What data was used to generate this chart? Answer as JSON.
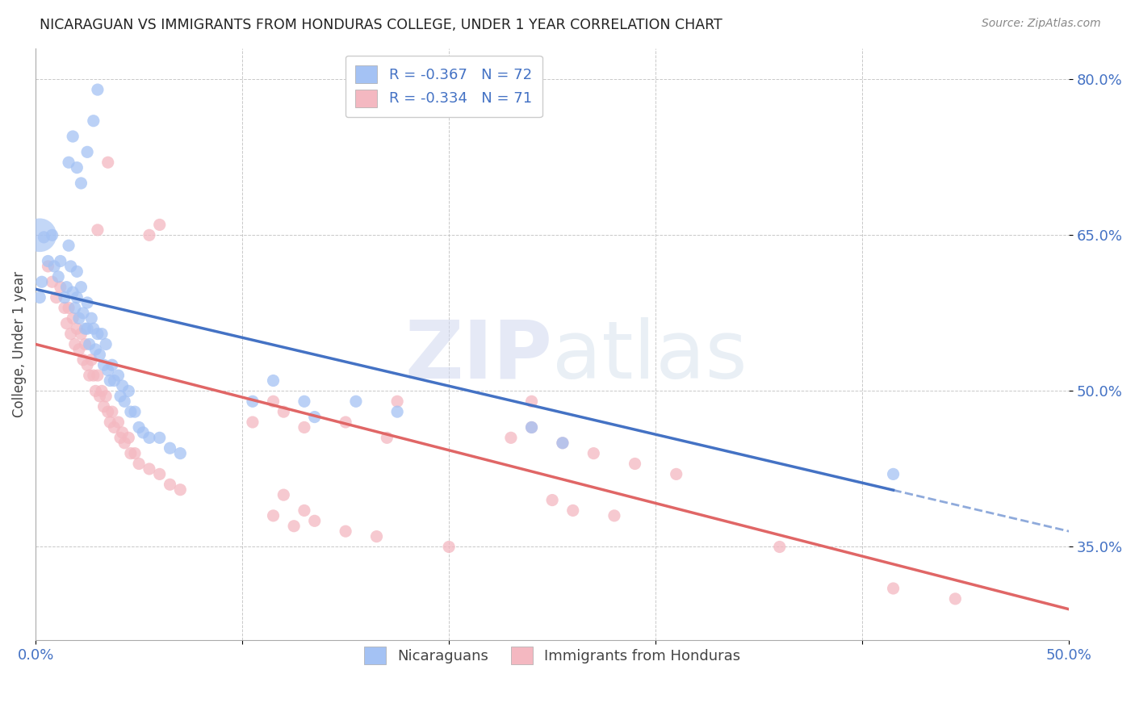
{
  "title": "NICARAGUAN VS IMMIGRANTS FROM HONDURAS COLLEGE, UNDER 1 YEAR CORRELATION CHART",
  "source": "Source: ZipAtlas.com",
  "ylabel": "College, Under 1 year",
  "legend_label1": "Nicaraguans",
  "legend_label2": "Immigrants from Honduras",
  "r1": -0.367,
  "n1": 72,
  "r2": -0.334,
  "n2": 71,
  "color_blue": "#a4c2f4",
  "color_pink": "#f4b8c1",
  "color_line_blue": "#4472c4",
  "color_line_pink": "#e06666",
  "color_legend_text": "#4472c4",
  "watermark_zip": "ZIP",
  "watermark_atlas": "atlas",
  "xmin": 0.0,
  "xmax": 0.5,
  "ymin": 0.26,
  "ymax": 0.83,
  "yticks": [
    0.35,
    0.5,
    0.65,
    0.8
  ],
  "ytick_labels": [
    "35.0%",
    "50.0%",
    "65.0%",
    "80.0%"
  ],
  "blue_line_x0": 0.0,
  "blue_line_y0": 0.598,
  "blue_line_x1": 0.5,
  "blue_line_y1": 0.365,
  "blue_line_solid_end": 0.415,
  "pink_line_x0": 0.0,
  "pink_line_y0": 0.545,
  "pink_line_x1": 0.5,
  "pink_line_y1": 0.29,
  "blue_scatter": [
    [
      0.004,
      0.648
    ],
    [
      0.006,
      0.625
    ],
    [
      0.008,
      0.65
    ],
    [
      0.009,
      0.62
    ],
    [
      0.011,
      0.61
    ],
    [
      0.012,
      0.625
    ],
    [
      0.014,
      0.59
    ],
    [
      0.015,
      0.6
    ],
    [
      0.016,
      0.64
    ],
    [
      0.017,
      0.62
    ],
    [
      0.018,
      0.595
    ],
    [
      0.019,
      0.58
    ],
    [
      0.02,
      0.615
    ],
    [
      0.02,
      0.59
    ],
    [
      0.021,
      0.57
    ],
    [
      0.022,
      0.6
    ],
    [
      0.023,
      0.575
    ],
    [
      0.024,
      0.56
    ],
    [
      0.025,
      0.585
    ],
    [
      0.025,
      0.56
    ],
    [
      0.026,
      0.545
    ],
    [
      0.027,
      0.57
    ],
    [
      0.028,
      0.56
    ],
    [
      0.029,
      0.54
    ],
    [
      0.03,
      0.555
    ],
    [
      0.031,
      0.535
    ],
    [
      0.032,
      0.555
    ],
    [
      0.033,
      0.525
    ],
    [
      0.034,
      0.545
    ],
    [
      0.035,
      0.52
    ],
    [
      0.036,
      0.51
    ],
    [
      0.037,
      0.525
    ],
    [
      0.038,
      0.51
    ],
    [
      0.04,
      0.515
    ],
    [
      0.041,
      0.495
    ],
    [
      0.042,
      0.505
    ],
    [
      0.043,
      0.49
    ],
    [
      0.045,
      0.5
    ],
    [
      0.046,
      0.48
    ],
    [
      0.048,
      0.48
    ],
    [
      0.05,
      0.465
    ],
    [
      0.052,
      0.46
    ],
    [
      0.055,
      0.455
    ],
    [
      0.06,
      0.455
    ],
    [
      0.065,
      0.445
    ],
    [
      0.07,
      0.44
    ],
    [
      0.016,
      0.72
    ],
    [
      0.018,
      0.745
    ],
    [
      0.02,
      0.715
    ],
    [
      0.022,
      0.7
    ],
    [
      0.025,
      0.73
    ],
    [
      0.028,
      0.76
    ],
    [
      0.03,
      0.79
    ],
    [
      0.105,
      0.49
    ],
    [
      0.115,
      0.51
    ],
    [
      0.13,
      0.49
    ],
    [
      0.135,
      0.475
    ],
    [
      0.155,
      0.49
    ],
    [
      0.175,
      0.48
    ],
    [
      0.24,
      0.465
    ],
    [
      0.255,
      0.45
    ],
    [
      0.415,
      0.42
    ],
    [
      0.002,
      0.59
    ],
    [
      0.003,
      0.605
    ]
  ],
  "blue_large_bubble": [
    0.002,
    0.65
  ],
  "pink_scatter": [
    [
      0.006,
      0.62
    ],
    [
      0.008,
      0.605
    ],
    [
      0.01,
      0.59
    ],
    [
      0.012,
      0.6
    ],
    [
      0.014,
      0.58
    ],
    [
      0.015,
      0.565
    ],
    [
      0.016,
      0.58
    ],
    [
      0.017,
      0.555
    ],
    [
      0.018,
      0.57
    ],
    [
      0.019,
      0.545
    ],
    [
      0.02,
      0.56
    ],
    [
      0.021,
      0.54
    ],
    [
      0.022,
      0.555
    ],
    [
      0.023,
      0.53
    ],
    [
      0.024,
      0.545
    ],
    [
      0.025,
      0.525
    ],
    [
      0.026,
      0.515
    ],
    [
      0.027,
      0.53
    ],
    [
      0.028,
      0.515
    ],
    [
      0.029,
      0.5
    ],
    [
      0.03,
      0.515
    ],
    [
      0.031,
      0.495
    ],
    [
      0.032,
      0.5
    ],
    [
      0.033,
      0.485
    ],
    [
      0.034,
      0.495
    ],
    [
      0.035,
      0.48
    ],
    [
      0.036,
      0.47
    ],
    [
      0.037,
      0.48
    ],
    [
      0.038,
      0.465
    ],
    [
      0.04,
      0.47
    ],
    [
      0.041,
      0.455
    ],
    [
      0.042,
      0.46
    ],
    [
      0.043,
      0.45
    ],
    [
      0.045,
      0.455
    ],
    [
      0.046,
      0.44
    ],
    [
      0.048,
      0.44
    ],
    [
      0.05,
      0.43
    ],
    [
      0.055,
      0.425
    ],
    [
      0.06,
      0.42
    ],
    [
      0.065,
      0.41
    ],
    [
      0.07,
      0.405
    ],
    [
      0.055,
      0.65
    ],
    [
      0.06,
      0.66
    ],
    [
      0.03,
      0.655
    ],
    [
      0.105,
      0.47
    ],
    [
      0.115,
      0.49
    ],
    [
      0.12,
      0.48
    ],
    [
      0.13,
      0.465
    ],
    [
      0.15,
      0.47
    ],
    [
      0.17,
      0.455
    ],
    [
      0.175,
      0.49
    ],
    [
      0.23,
      0.455
    ],
    [
      0.24,
      0.465
    ],
    [
      0.255,
      0.45
    ],
    [
      0.27,
      0.44
    ],
    [
      0.29,
      0.43
    ],
    [
      0.31,
      0.42
    ],
    [
      0.24,
      0.49
    ],
    [
      0.115,
      0.38
    ],
    [
      0.125,
      0.37
    ],
    [
      0.15,
      0.365
    ],
    [
      0.165,
      0.36
    ],
    [
      0.2,
      0.35
    ],
    [
      0.25,
      0.395
    ],
    [
      0.26,
      0.385
    ],
    [
      0.28,
      0.38
    ],
    [
      0.36,
      0.35
    ],
    [
      0.415,
      0.31
    ],
    [
      0.445,
      0.3
    ],
    [
      0.035,
      0.72
    ],
    [
      0.12,
      0.4
    ],
    [
      0.13,
      0.385
    ],
    [
      0.135,
      0.375
    ]
  ]
}
